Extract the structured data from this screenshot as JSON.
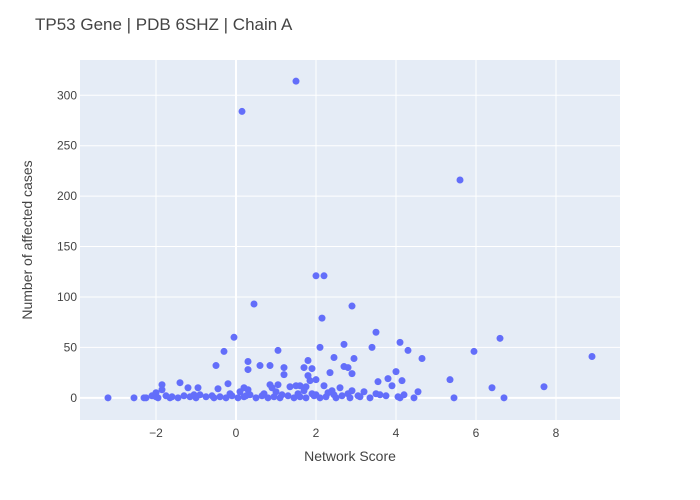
{
  "chart_data": {
    "type": "scatter",
    "title": "TP53 Gene | PDB 6SHZ | Chain A",
    "xlabel": "Network Score",
    "ylabel": "Number of affected cases",
    "xlim": [
      -3.9,
      9.6
    ],
    "ylim": [
      -22,
      335
    ],
    "xticks": [
      -2,
      0,
      2,
      4,
      6,
      8
    ],
    "yticks": [
      0,
      50,
      100,
      150,
      200,
      250,
      300
    ],
    "xtick_labels": [
      "−2",
      "0",
      "2",
      "4",
      "6",
      "8"
    ],
    "ytick_labels": [
      "0",
      "50",
      "100",
      "150",
      "200",
      "250",
      "300"
    ],
    "grid": true,
    "marker_color": "#636efa",
    "background_color": "#e5ecf6",
    "points": [
      [
        1.5,
        314
      ],
      [
        0.15,
        284
      ],
      [
        5.6,
        216
      ],
      [
        2.0,
        121
      ],
      [
        2.2,
        121
      ],
      [
        0.45,
        93
      ],
      [
        2.9,
        91
      ],
      [
        2.15,
        79
      ],
      [
        -0.05,
        60
      ],
      [
        3.5,
        65
      ],
      [
        6.6,
        59
      ],
      [
        4.1,
        55
      ],
      [
        2.7,
        53
      ],
      [
        2.1,
        50
      ],
      [
        3.4,
        50
      ],
      [
        5.95,
        46
      ],
      [
        -0.3,
        46
      ],
      [
        1.05,
        47
      ],
      [
        4.3,
        47
      ],
      [
        8.9,
        41
      ],
      [
        2.45,
        40
      ],
      [
        4.65,
        39
      ],
      [
        2.95,
        39
      ],
      [
        1.8,
        37
      ],
      [
        -0.5,
        32
      ],
      [
        0.3,
        36
      ],
      [
        0.6,
        32
      ],
      [
        0.85,
        32
      ],
      [
        1.2,
        30
      ],
      [
        1.7,
        30
      ],
      [
        2.7,
        31
      ],
      [
        2.8,
        30
      ],
      [
        0.3,
        28
      ],
      [
        1.9,
        29
      ],
      [
        4.0,
        26
      ],
      [
        2.35,
        25
      ],
      [
        2.9,
        24
      ],
      [
        1.2,
        23
      ],
      [
        1.8,
        22
      ],
      [
        2.0,
        18
      ],
      [
        1.85,
        17
      ],
      [
        3.8,
        19
      ],
      [
        4.15,
        17
      ],
      [
        3.55,
        16
      ],
      [
        5.35,
        18
      ],
      [
        -1.4,
        15
      ],
      [
        -0.2,
        14
      ],
      [
        -1.85,
        13
      ],
      [
        0.85,
        13
      ],
      [
        1.05,
        13
      ],
      [
        1.5,
        12
      ],
      [
        1.6,
        12
      ],
      [
        1.75,
        11
      ],
      [
        2.2,
        12
      ],
      [
        2.6,
        10
      ],
      [
        3.9,
        12
      ],
      [
        6.4,
        10
      ],
      [
        7.7,
        11
      ],
      [
        -1.2,
        10
      ],
      [
        -0.95,
        10
      ],
      [
        0.2,
        10
      ],
      [
        0.9,
        10
      ],
      [
        1.35,
        11
      ],
      [
        2.4,
        7
      ],
      [
        -1.85,
        8
      ],
      [
        -0.45,
        9
      ],
      [
        0.3,
        8
      ],
      [
        1.7,
        7
      ],
      [
        2.3,
        5
      ],
      [
        2.9,
        7
      ],
      [
        3.2,
        6
      ],
      [
        4.55,
        6
      ],
      [
        -2.0,
        5
      ],
      [
        0.1,
        6
      ],
      [
        1.0,
        6
      ],
      [
        1.9,
        4
      ],
      [
        2.8,
        4
      ],
      [
        3.6,
        3
      ],
      [
        4.2,
        3
      ],
      [
        -3.2,
        0
      ],
      [
        -2.55,
        0
      ],
      [
        -2.3,
        0
      ],
      [
        -2.25,
        0
      ],
      [
        -2.0,
        1
      ],
      [
        -1.95,
        0
      ],
      [
        -1.75,
        2
      ],
      [
        -1.6,
        1
      ],
      [
        -1.45,
        0
      ],
      [
        -1.3,
        2
      ],
      [
        -1.15,
        1
      ],
      [
        -1.0,
        0
      ],
      [
        -0.9,
        3
      ],
      [
        -0.75,
        1
      ],
      [
        -0.55,
        0
      ],
      [
        -0.4,
        1
      ],
      [
        -0.25,
        0
      ],
      [
        -0.1,
        2
      ],
      [
        0.05,
        0
      ],
      [
        0.2,
        1
      ],
      [
        0.35,
        3
      ],
      [
        0.5,
        0
      ],
      [
        0.65,
        2
      ],
      [
        0.8,
        0
      ],
      [
        0.95,
        1
      ],
      [
        1.1,
        0
      ],
      [
        1.3,
        2
      ],
      [
        1.45,
        0
      ],
      [
        1.6,
        1
      ],
      [
        1.75,
        0
      ],
      [
        1.95,
        2
      ],
      [
        2.1,
        0
      ],
      [
        2.25,
        1
      ],
      [
        2.5,
        0
      ],
      [
        2.65,
        2
      ],
      [
        2.85,
        0
      ],
      [
        3.1,
        1
      ],
      [
        3.35,
        0
      ],
      [
        3.75,
        2
      ],
      [
        4.05,
        1
      ],
      [
        4.45,
        0
      ],
      [
        5.45,
        0
      ],
      [
        6.7,
        0
      ],
      [
        -2.1,
        2
      ],
      [
        -1.65,
        0
      ],
      [
        -1.05,
        3
      ],
      [
        -0.6,
        2
      ],
      [
        -0.15,
        4
      ],
      [
        0.25,
        2
      ],
      [
        0.7,
        4
      ],
      [
        1.15,
        3
      ],
      [
        1.55,
        4
      ],
      [
        2.0,
        3
      ],
      [
        2.45,
        3
      ],
      [
        3.05,
        2
      ],
      [
        3.5,
        4
      ],
      [
        4.1,
        0
      ]
    ]
  }
}
